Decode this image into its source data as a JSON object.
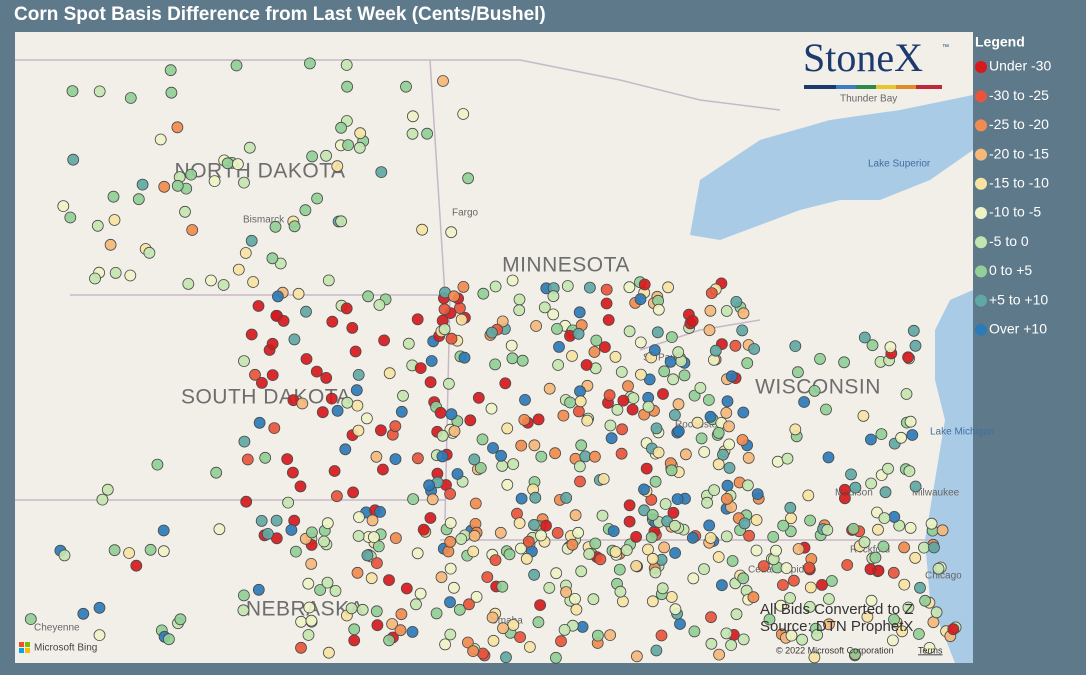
{
  "header": {
    "title": "Corn Spot Basis Difference from Last Week (Cents/Bushel)"
  },
  "legend": {
    "title": "Legend",
    "items": [
      {
        "label": "Under -30",
        "color": "#d7191c"
      },
      {
        "label": "-30 to -25",
        "color": "#e8553a"
      },
      {
        "label": "-25 to -20",
        "color": "#f08c4f"
      },
      {
        "label": "-20 to -15",
        "color": "#f5b87a"
      },
      {
        "label": "-15 to -10",
        "color": "#f7e3a3"
      },
      {
        "label": "-10 to -5",
        "color": "#eef3c5"
      },
      {
        "label": "-5 to 0",
        "color": "#c5e5b0"
      },
      {
        "label": "0 to +5",
        "color": "#93cf96"
      },
      {
        "label": "+5 to +10",
        "color": "#5fa8a4"
      },
      {
        "label": "Over +10",
        "color": "#2c7bb6"
      }
    ]
  },
  "map": {
    "states": [
      "NORTH DAKOTA",
      "MINNESOTA",
      "SOUTH DAKOTA",
      "WISCONSIN",
      "NEBRASKA"
    ],
    "cities": [
      "Bismarck",
      "Fargo",
      "St. Paul",
      "Rochester",
      "Thunder Bay",
      "Madison",
      "Milwaukee",
      "Rockford",
      "Chicago",
      "Cheyenne",
      "Omaha",
      "Cedar Rapids"
    ],
    "water": [
      "Lake Superior",
      "Lake Michigan"
    ]
  },
  "logo": {
    "name": "StoneX",
    "mark": "™"
  },
  "notes": [
    "All Bids Converted to Z",
    "Source: DTN ProphetX"
  ],
  "footer": {
    "bing": "Microsoft Bing",
    "copyright": "© 2022 Microsoft Corporation",
    "terms": "Terms"
  }
}
